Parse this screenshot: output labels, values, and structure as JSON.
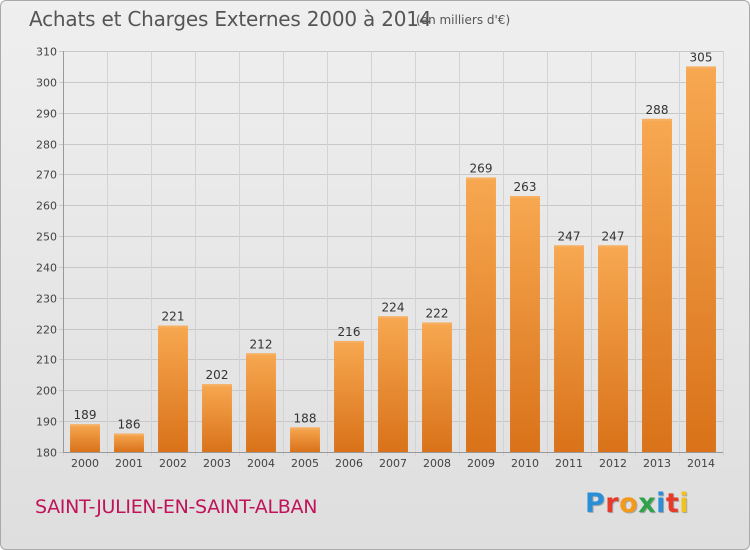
{
  "title": "Achats et Charges Externes 2000 à 2014",
  "subtitle": "(en milliers d'€)",
  "commune": "SAINT-JULIEN-EN-SAINT-ALBAN",
  "logo": {
    "text": "Proxiti",
    "letter_colors": [
      "#2a8fd6",
      "#e63a2a",
      "#f29a1c",
      "#2fa34a",
      "#2a8fd6",
      "#e63a2a",
      "#f2c21c"
    ]
  },
  "colors": {
    "bar_top": "#f7a851",
    "bar_bottom": "#d97219",
    "grid": "#c8c8c8",
    "axis_text": "#444444"
  },
  "chart_data": {
    "type": "bar",
    "categories": [
      "2000",
      "2001",
      "2002",
      "2003",
      "2004",
      "2005",
      "2006",
      "2007",
      "2008",
      "2009",
      "2010",
      "2011",
      "2012",
      "2013",
      "2014"
    ],
    "values": [
      189,
      186,
      221,
      202,
      212,
      188,
      216,
      224,
      222,
      269,
      263,
      247,
      247,
      288,
      305
    ],
    "ylim": [
      180,
      310
    ],
    "yticks": [
      180,
      190,
      200,
      210,
      220,
      230,
      240,
      250,
      260,
      270,
      280,
      290,
      300,
      310
    ],
    "grid": true,
    "data_labels": true
  }
}
